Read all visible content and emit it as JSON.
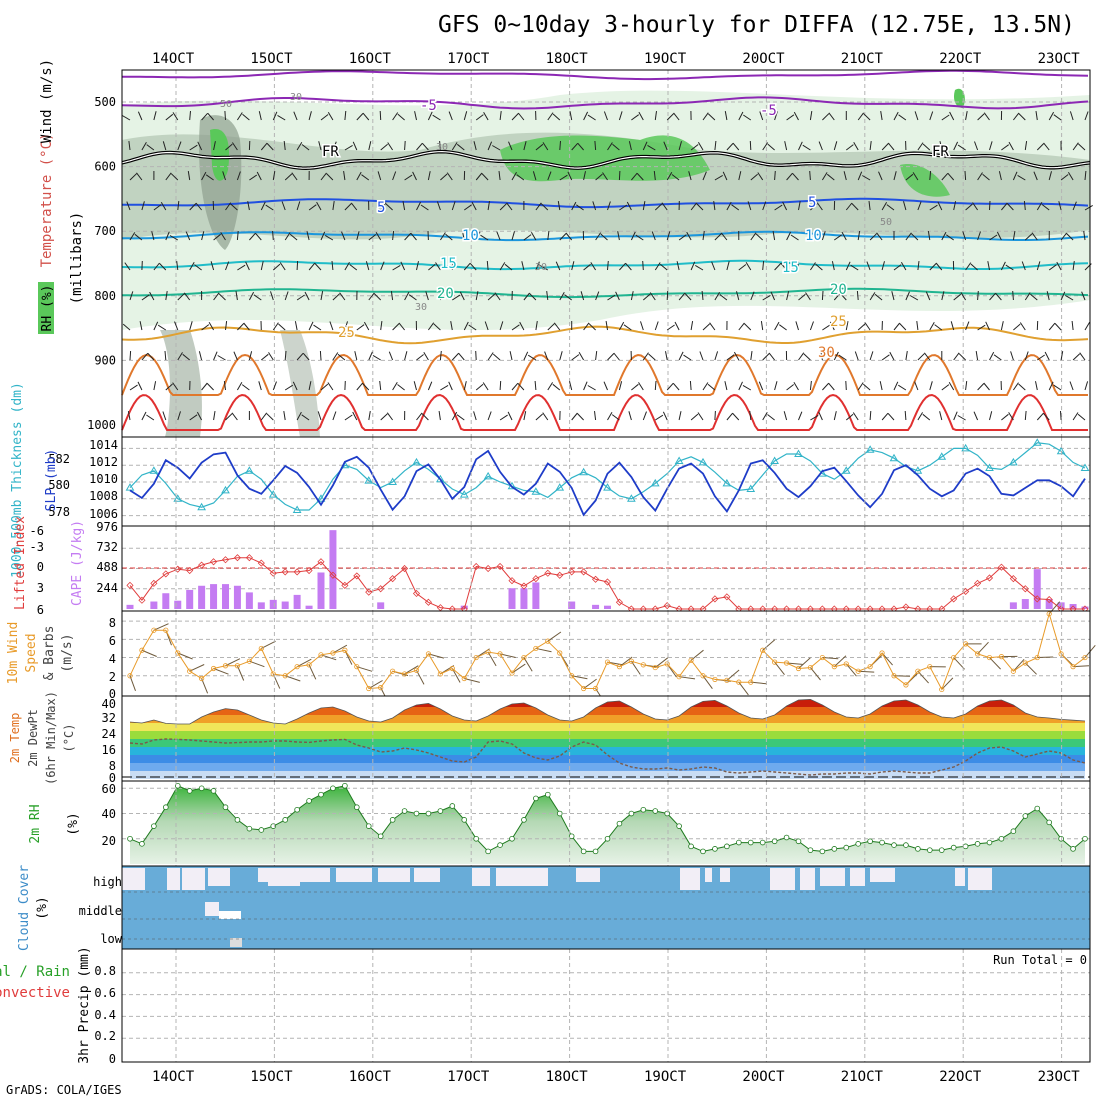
{
  "title": "GFS 0~10day 3-hourly for DIFFA (12.75E, 13.5N)",
  "credit": "GrADS: COLA/IGES",
  "dates": [
    "14OCT",
    "15OCT",
    "16OCT",
    "17OCT",
    "18OCT",
    "19OCT",
    "20OCT",
    "21OCT",
    "22OCT",
    "23OCT"
  ],
  "colors": {
    "grid": "#b4b4b4",
    "rh_light": "#e2f2e2",
    "rh_mid": "#b4c8b4",
    "rh_dark": "#8ea08e",
    "rh_green": "#5ac85a",
    "slp": "#1e3cc8",
    "thick": "#32b4c8",
    "cape": "#c47cf2",
    "li": "#e03c3c",
    "wind": "#e89a28",
    "rain_green": "#28a028",
    "cloud_blue": "#68acd8",
    "cloud_bg": "#f2eef6"
  },
  "panels": {
    "upper": {
      "ylabel_rh": "RH (%)",
      "ylabel_temp": "Temperature (°C)",
      "ylabel_wind": "Wind (m/s)",
      "ylabel_mb": "(millibars)",
      "pressure_ticks": [
        "500",
        "600",
        "700",
        "800",
        "900",
        "1000"
      ],
      "isotherm_labels": [
        "-5",
        "-5",
        "FR",
        "FR",
        "5",
        "5",
        "10",
        "10",
        "15",
        "15",
        "20",
        "20",
        "25",
        "25",
        "30"
      ],
      "rh_labels": [
        "30",
        "30",
        "50",
        "30",
        "30",
        "50"
      ]
    },
    "slp": {
      "ylabel_left": "1000-500mb Thickness (dm)",
      "ylabel_right": "SLP (mb)",
      "left_ticks": [
        "582",
        "580",
        "578"
      ],
      "right_ticks": [
        "1014",
        "1012",
        "1010",
        "1008",
        "1006"
      ]
    },
    "cape": {
      "ylabel_li": "Lifted Index",
      "ylabel_cape": "CAPE (J/kg)",
      "li_ticks": [
        "-6",
        "-3",
        "0",
        "3",
        "6"
      ],
      "cape_ticks": [
        "976",
        "732",
        "488",
        "244"
      ]
    },
    "wind": {
      "ylabel": [
        "10m Wind",
        "Speed",
        "& Barbs",
        "(m/s)"
      ],
      "ticks": [
        "8",
        "6",
        "4",
        "2",
        "0"
      ]
    },
    "temp": {
      "ylabel": [
        "2m Temp",
        "2m DewPt",
        "(6hr Min/Max)",
        "(°C)"
      ],
      "ticks": [
        "40",
        "32",
        "24",
        "16",
        "8",
        "0"
      ]
    },
    "rh2m": {
      "ylabel": [
        "2m RH",
        "(%)"
      ],
      "ticks": [
        "60",
        "40",
        "20"
      ]
    },
    "cloud": {
      "ylabel": [
        "Cloud Cover",
        "(%)"
      ],
      "levels": [
        "high",
        "middle",
        "low"
      ]
    },
    "precip": {
      "ylabel": [
        "tal / Rain",
        "Convective",
        "3hr Precip (mm)"
      ],
      "ticks": [
        "0.8",
        "0.6",
        "0.4",
        "0.2",
        "0"
      ],
      "run_total": "Run Total = 0"
    }
  },
  "chart_data": {
    "type": "line",
    "x_unit": "3-hour steps from 13OCT 12Z",
    "sea_level_pressure_mb": [
      1009.0,
      1008.1,
      1009.8,
      1012.6,
      1011.7,
      1010.4,
      1012.3,
      1013.3,
      1013.5,
      1010.8,
      1009.2,
      1008.6,
      1010.2,
      1011.9,
      1011.1,
      1009.4,
      1007.3,
      1009.6,
      1012.4,
      1013.0,
      1011.7,
      1009.1,
      1006.7,
      1008.3,
      1011.3,
      1012.1,
      1010.3,
      1008.0,
      1009.4,
      1012.7,
      1013.7,
      1011.2,
      1009.4,
      1008.5,
      1009.8,
      1012.2,
      1011.2,
      1009.3,
      1006.1,
      1007.8,
      1011.0,
      1012.3,
      1010.6,
      1008.2,
      1006.6,
      1009.2,
      1011.6,
      1012.2,
      1011.0,
      1008.3,
      1006.5,
      1009.0,
      1012.2,
      1012.6,
      1011.1,
      1009.2,
      1008.2,
      1009.5,
      1011.3,
      1011.7,
      1010.1,
      1008.4,
      1007.0,
      1008.6,
      1011.4,
      1012.0,
      1010.8,
      1009.2,
      1008.3,
      1009.0,
      1011.0,
      1011.6,
      1010.7,
      1008.6,
      1008.4,
      1009.3,
      1010.2,
      1010.2,
      1009.5,
      1008.3,
      1010.4
    ],
    "thickness_dm": [
      579.6,
      580.5,
      580.8,
      579.9,
      578.8,
      578.4,
      578.2,
      578.5,
      579.4,
      580.4,
      580.8,
      580.2,
      579.1,
      578.4,
      578.0,
      578.0,
      578.8,
      580.2,
      581.2,
      580.9,
      580.1,
      579.6,
      580.0,
      580.8,
      581.4,
      580.9,
      580.2,
      579.5,
      579.1,
      579.6,
      580.4,
      580.0,
      579.7,
      579.4,
      579.3,
      578.9,
      579.6,
      580.3,
      580.7,
      580.3,
      579.6,
      579.0,
      578.8,
      579.3,
      579.9,
      580.6,
      581.5,
      581.8,
      581.4,
      580.7,
      579.9,
      579.4,
      579.5,
      580.5,
      581.5,
      582.0,
      582.0,
      581.5,
      580.6,
      580.2,
      580.8,
      581.7,
      582.3,
      582.1,
      581.7,
      581.1,
      580.8,
      581.2,
      581.8,
      582.4,
      582.4,
      581.9,
      581.0,
      580.9,
      581.4,
      582.1,
      582.8,
      582.7,
      582.2,
      581.4,
      581.0
    ],
    "lifted_index": [
      2.5,
      4.7,
      2.2,
      0.8,
      0.1,
      0.3,
      -0.5,
      -1.0,
      -1.3,
      -1.6,
      -1.6,
      -0.8,
      0.7,
      0.5,
      0.5,
      0.3,
      -1.0,
      1.0,
      2.5,
      1.1,
      3.5,
      3.0,
      1.5,
      0.0,
      3.7,
      5.0,
      5.8,
      6.0,
      6.0,
      -0.3,
      0.0,
      -0.3,
      1.8,
      2.6,
      1.5,
      0.7,
      1.0,
      0.5,
      0.5,
      1.6,
      2.0,
      5.0,
      6.0,
      6.0,
      6.0,
      5.5,
      6.0,
      6.0,
      6.0,
      4.5,
      4.2,
      6.0,
      6.0,
      6.0,
      6.0,
      6.0,
      6.0,
      6.0,
      6.0,
      6.0,
      6.0,
      6.0,
      6.0,
      6.0,
      6.0,
      5.7,
      6.0,
      6.0,
      6.0,
      4.5,
      3.4,
      2.2,
      1.4,
      -0.2,
      1.5,
      3.0,
      4.5,
      4.6,
      6.0,
      6.0,
      6.0
    ],
    "cape_jkg": [
      50,
      0,
      90,
      190,
      100,
      230,
      280,
      300,
      300,
      280,
      200,
      80,
      110,
      90,
      170,
      40,
      440,
      950,
      0,
      0,
      0,
      80,
      0,
      0,
      0,
      0,
      0,
      0,
      40,
      0,
      0,
      0,
      250,
      250,
      320,
      0,
      0,
      90,
      0,
      50,
      40,
      0,
      0,
      0,
      0,
      0,
      0,
      0,
      0,
      0,
      0,
      0,
      0,
      0,
      0,
      0,
      0,
      0,
      0,
      0,
      0,
      0,
      0,
      0,
      0,
      0,
      0,
      0,
      0,
      0,
      0,
      0,
      0,
      0,
      80,
      120,
      480,
      120,
      80,
      60,
      30
    ],
    "wind10m_ms": [
      2.0,
      4.8,
      7.0,
      7.0,
      4.5,
      2.5,
      1.7,
      2.8,
      3.1,
      3.1,
      3.6,
      5.0,
      2.2,
      2.0,
      3.0,
      3.2,
      4.3,
      4.5,
      4.8,
      3.0,
      0.6,
      0.7,
      2.5,
      2.2,
      2.6,
      4.4,
      2.2,
      2.8,
      1.7,
      4.0,
      4.6,
      4.4,
      2.3,
      4.0,
      5.0,
      5.8,
      4.5,
      2.0,
      0.6,
      0.6,
      3.5,
      3.0,
      3.6,
      3.2,
      2.9,
      3.3,
      1.9,
      3.7,
      2.0,
      1.6,
      1.5,
      1.3,
      1.3,
      4.8,
      3.5,
      3.4,
      2.8,
      2.9,
      4.0,
      3.0,
      3.3,
      2.5,
      3.0,
      4.5,
      2.0,
      1.0,
      2.5,
      3.0,
      0.5,
      4.0,
      5.5,
      4.4,
      4.0,
      4.1,
      2.5,
      3.4,
      4.0,
      8.8,
      4.4,
      3.0,
      4.0
    ],
    "temp2m_c": [
      28.5,
      28.0,
      29.5,
      27.8,
      27.5,
      27.5,
      31.0,
      33.5,
      35.2,
      34.5,
      32.0,
      29.5,
      28.0,
      27.5,
      30.0,
      33.0,
      35.5,
      36.0,
      34.0,
      31.0,
      29.0,
      28.5,
      30.5,
      34.5,
      37.0,
      37.8,
      35.0,
      31.5,
      29.5,
      29.0,
      31.5,
      35.0,
      37.5,
      38.0,
      35.5,
      32.0,
      29.5,
      29.0,
      31.0,
      35.5,
      38.5,
      39.0,
      36.0,
      32.5,
      30.0,
      29.5,
      31.5,
      36.0,
      38.8,
      39.3,
      36.5,
      33.0,
      30.5,
      30.0,
      32.0,
      36.5,
      39.5,
      39.8,
      37.0,
      33.5,
      31.0,
      30.5,
      32.5,
      36.5,
      39.0,
      39.5,
      37.0,
      33.5,
      31.0,
      30.5,
      32.5,
      36.5,
      39.0,
      39.5,
      37.0,
      33.0,
      31.0,
      30.5,
      29.8,
      29.4,
      29.0
    ],
    "dewpoint2m_c": [
      18.0,
      17.5,
      19.5,
      20.0,
      19.8,
      19.5,
      19.0,
      18.5,
      18.0,
      18.2,
      18.5,
      18.5,
      19.0,
      19.0,
      18.5,
      18.3,
      19.0,
      19.5,
      19.8,
      17.0,
      15.5,
      13.5,
      14.0,
      15.5,
      14.5,
      13.0,
      11.0,
      9.0,
      8.5,
      11.0,
      18.5,
      19.0,
      17.5,
      13.0,
      10.5,
      9.5,
      11.5,
      16.0,
      18.5,
      17.0,
      12.0,
      8.0,
      6.0,
      5.0,
      5.0,
      5.5,
      4.5,
      5.0,
      6.0,
      5.5,
      3.5,
      3.0,
      3.5,
      4.0,
      3.5,
      3.0,
      2.5,
      2.0,
      2.5,
      2.5,
      3.0,
      3.0,
      2.5,
      3.5,
      4.0,
      3.5,
      3.0,
      3.0,
      4.5,
      6.0,
      9.0,
      13.0,
      15.5,
      16.0,
      14.0,
      11.0,
      12.5,
      14.0,
      13.0,
      9.5,
      8.0
    ],
    "rh2m_pct": [
      20,
      16,
      30,
      45,
      62,
      58,
      60,
      58,
      45,
      35,
      28,
      27,
      30,
      35,
      43,
      50,
      55,
      60,
      62,
      45,
      30,
      22,
      35,
      42,
      40,
      40,
      42,
      46,
      35,
      20,
      10,
      15,
      20,
      35,
      52,
      55,
      40,
      22,
      10,
      10,
      20,
      32,
      40,
      43,
      42,
      40,
      30,
      14,
      10,
      12,
      14,
      17,
      17,
      17,
      18,
      21,
      18,
      11,
      10,
      12,
      13,
      16,
      18,
      17,
      15,
      15,
      12,
      11,
      11,
      13,
      14,
      16,
      17,
      20,
      26,
      38,
      44,
      33,
      20,
      12,
      20
    ],
    "precip_mm": [
      0,
      0,
      0,
      0,
      0,
      0,
      0,
      0,
      0,
      0,
      0,
      0,
      0,
      0,
      0,
      0,
      0,
      0,
      0,
      0,
      0,
      0,
      0,
      0,
      0,
      0,
      0,
      0,
      0,
      0,
      0,
      0,
      0,
      0,
      0,
      0,
      0,
      0,
      0,
      0,
      0,
      0,
      0,
      0,
      0,
      0,
      0,
      0,
      0,
      0,
      0,
      0,
      0,
      0,
      0,
      0,
      0,
      0,
      0,
      0,
      0,
      0,
      0,
      0,
      0,
      0,
      0,
      0,
      0,
      0,
      0,
      0,
      0,
      0,
      0,
      0,
      0,
      0,
      0,
      0,
      0
    ],
    "precip_run_total_mm": 0,
    "pressure_levels_mb": [
      500,
      600,
      700,
      800,
      900,
      1000
    ],
    "ranges": {
      "slp_mb": [
        1005,
        1015
      ],
      "thickness_dm": [
        577,
        583
      ],
      "lifted_index": [
        6,
        -6
      ],
      "cape_jkg": [
        0,
        976
      ],
      "wind_ms": [
        0,
        9
      ],
      "temp_c": [
        0,
        41
      ],
      "rh2m_pct": [
        0,
        65
      ],
      "precip_mm": [
        0,
        1
      ]
    }
  }
}
